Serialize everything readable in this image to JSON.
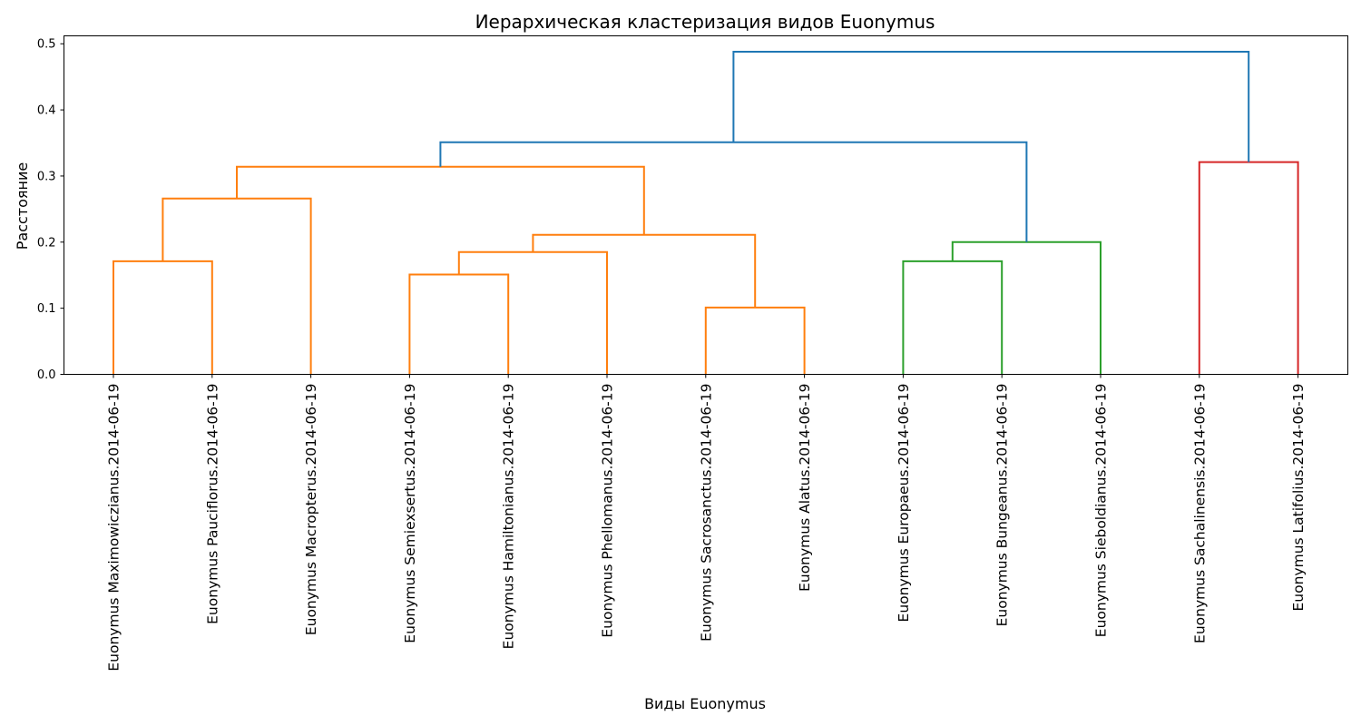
{
  "chart_data": {
    "type": "dendrogram",
    "title": "Иерархическая кластеризация видов Euonymus",
    "xlabel": "Виды Euonymus",
    "ylabel": "Расстояние",
    "ylim": [
      0,
      0.512
    ],
    "yticks": [
      "0.0",
      "0.1",
      "0.2",
      "0.3",
      "0.4",
      "0.5"
    ],
    "ytick_values": [
      0.0,
      0.1,
      0.2,
      0.3,
      0.4,
      0.5
    ],
    "grid": false,
    "leaves": [
      "Euonymus Maximowiczianus.2014-06-19",
      "Euonymus Pauciflorus.2014-06-19",
      "Euonymus Macropterus.2014-06-19",
      "Euonymus Semiexsertus.2014-06-19",
      "Euonymus Hamiltonianus.2014-06-19",
      "Euonymus Phellomanus.2014-06-19",
      "Euonymus Sacrosanctus.2014-06-19",
      "Euonymus Alatus.2014-06-19",
      "Euonymus Europaeus.2014-06-19",
      "Euonymus Bungeanus.2014-06-19",
      "Euonymus Sieboldianus.2014-06-19",
      "Euonymus Sachalinensis.2014-06-19",
      "Euonymus Latifolius.2014-06-19"
    ],
    "colors": {
      "orange": "#ff7f0e",
      "green": "#2ca02c",
      "red": "#d62728",
      "blue": "#1f77b4"
    },
    "merges": [
      {
        "left": "L0",
        "right": "L1",
        "height": 0.171,
        "color": "orange"
      },
      {
        "left": "M0",
        "right": "L2",
        "height": 0.266,
        "color": "orange"
      },
      {
        "left": "L3",
        "right": "L4",
        "height": 0.151,
        "color": "orange"
      },
      {
        "left": "M2",
        "right": "L5",
        "height": 0.185,
        "color": "orange"
      },
      {
        "left": "L6",
        "right": "L7",
        "height": 0.101,
        "color": "orange"
      },
      {
        "left": "M3",
        "right": "M4",
        "height": 0.211,
        "color": "orange"
      },
      {
        "left": "M1",
        "right": "M5",
        "height": 0.314,
        "color": "orange"
      },
      {
        "left": "L8",
        "right": "L9",
        "height": 0.171,
        "color": "green"
      },
      {
        "left": "M7",
        "right": "L10",
        "height": 0.2,
        "color": "green"
      },
      {
        "left": "M6",
        "right": "M8",
        "height": 0.351,
        "color": "blue"
      },
      {
        "left": "L11",
        "right": "L12",
        "height": 0.321,
        "color": "red"
      },
      {
        "left": "M9",
        "right": "M10",
        "height": 0.488,
        "color": "blue"
      }
    ]
  }
}
